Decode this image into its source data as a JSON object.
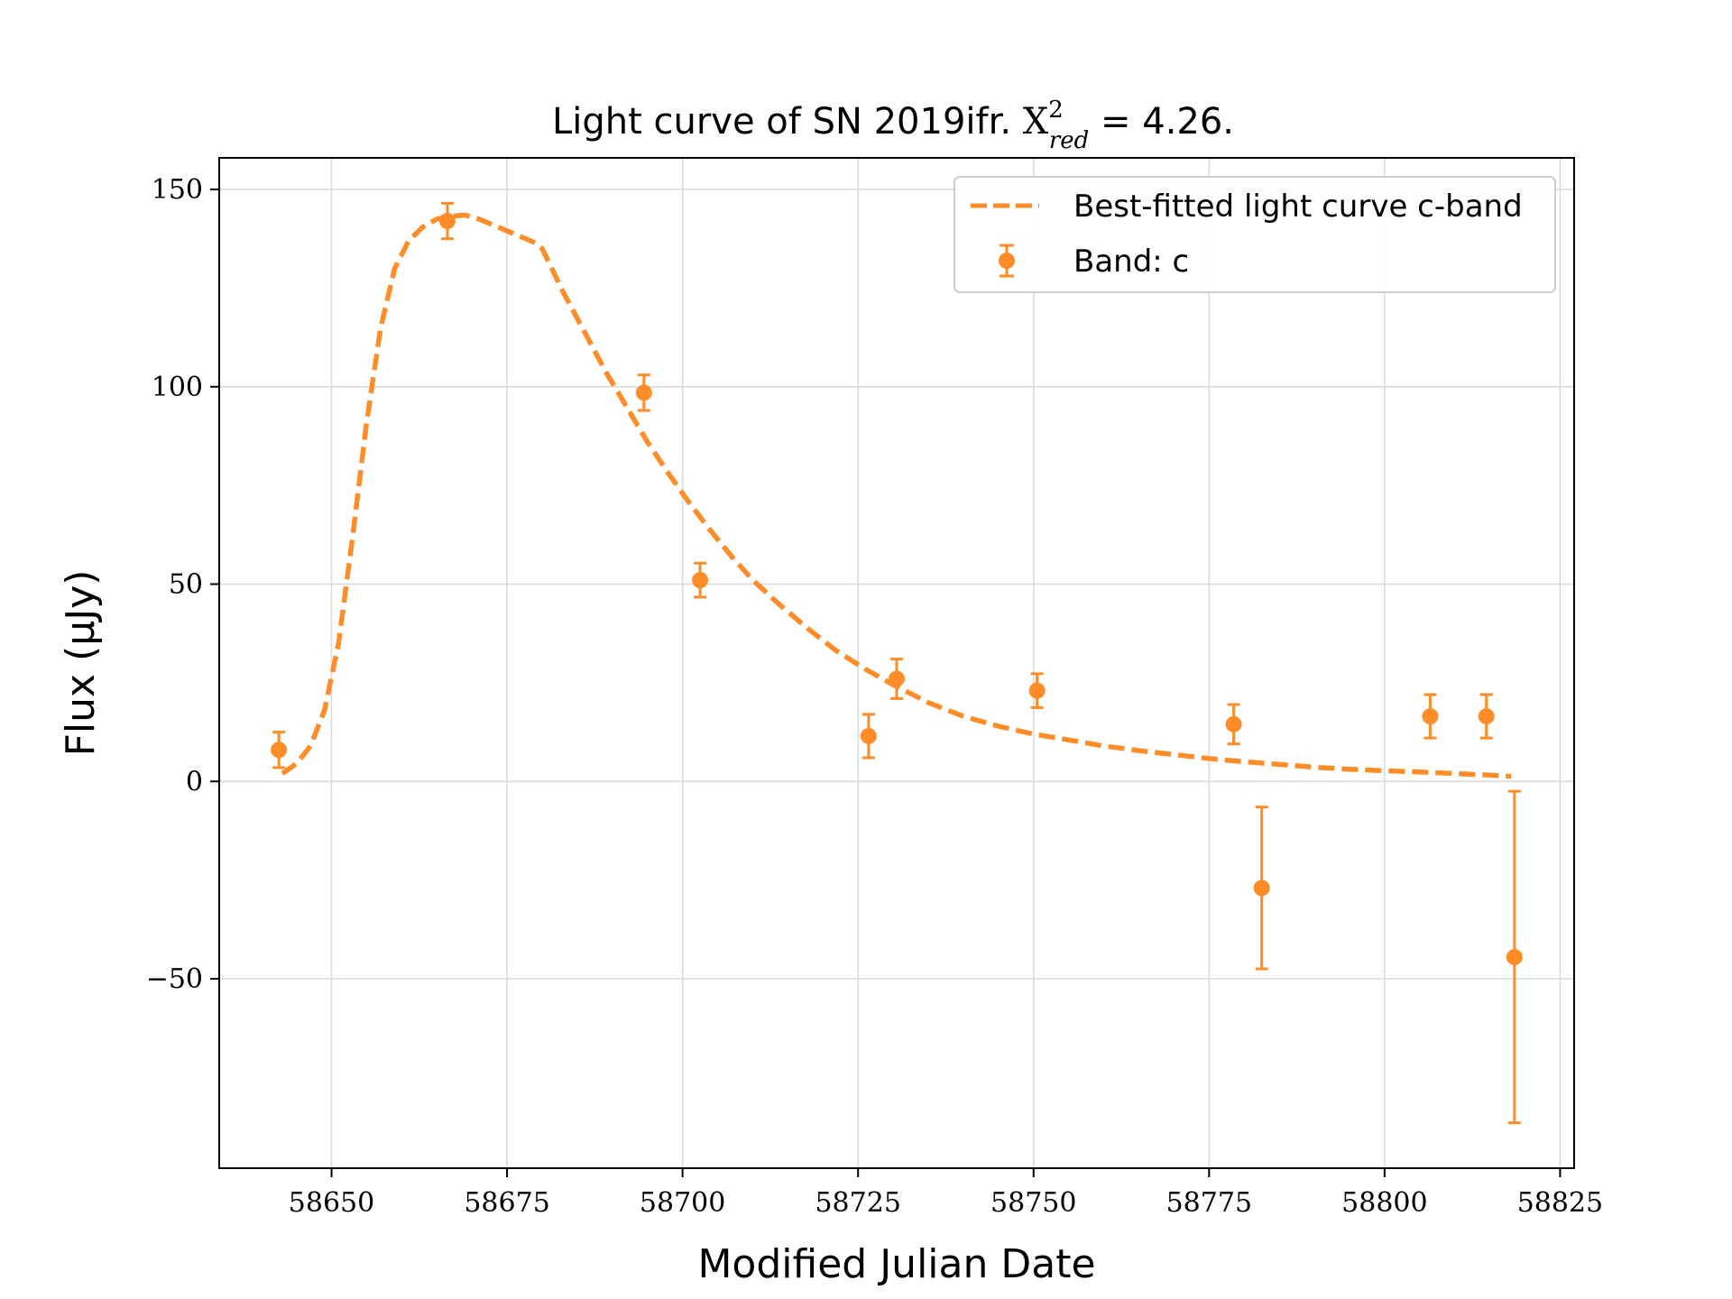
{
  "chart_data": {
    "type": "scatter",
    "title": {
      "prefix": "Light curve of SN 2019ifr. ",
      "chi_symbol": "X",
      "chi_sup": "2",
      "chi_sub": "red",
      "suffix": " = 4.26."
    },
    "xlabel": "Modified Julian Date",
    "ylabel": "Flux (μJy)",
    "xlim": [
      58634,
      58827
    ],
    "ylim": [
      -98,
      158
    ],
    "xticks": [
      58650,
      58675,
      58700,
      58725,
      58750,
      58775,
      58800,
      58825
    ],
    "yticks": [
      -50,
      0,
      50,
      100,
      150
    ],
    "grid": true,
    "legend_position": "top-right",
    "color": "#ff8c26",
    "series": [
      {
        "name": "Best-fitted light curve c-band",
        "kind": "line",
        "style": "dashed",
        "x": [
          58643,
          58645,
          58647,
          58649,
          58651,
          58653,
          58655,
          58657,
          58659,
          58661,
          58663,
          58665,
          58667,
          58669,
          58671,
          58673,
          58675,
          58677,
          58679,
          58680,
          58683,
          58686,
          58689,
          58692,
          58695,
          58698,
          58701,
          58704,
          58707,
          58710,
          58714,
          58718,
          58722,
          58726,
          58730,
          58735,
          58740,
          58745,
          58750,
          58755,
          58760,
          58765,
          58770,
          58775,
          58780,
          58785,
          58790,
          58795,
          58800,
          58805,
          58810,
          58815,
          58818
        ],
        "y": [
          2,
          4.5,
          9,
          18,
          35,
          62,
          91,
          115,
          130,
          137,
          140.5,
          142.5,
          143.2,
          143.5,
          142.5,
          141,
          139.5,
          138,
          136.5,
          135,
          124,
          114,
          104,
          95,
          86,
          78,
          70.5,
          63.5,
          57,
          51,
          44.5,
          38.5,
          33,
          28.5,
          24.5,
          20,
          16.5,
          14,
          12,
          10.5,
          9,
          7.8,
          6.8,
          5.8,
          5,
          4.3,
          3.6,
          3.1,
          2.7,
          2.4,
          2,
          1.6,
          1.3
        ]
      },
      {
        "name": "Band: c",
        "kind": "errorbar",
        "points": [
          {
            "x": 58642.5,
            "y": 8,
            "err": 4.5
          },
          {
            "x": 58666.5,
            "y": 142,
            "err": 4.5
          },
          {
            "x": 58694.5,
            "y": 98.5,
            "err": 4.5
          },
          {
            "x": 58702.5,
            "y": 51,
            "err": 4.3
          },
          {
            "x": 58726.5,
            "y": 11.5,
            "err": 5.5
          },
          {
            "x": 58730.5,
            "y": 26,
            "err": 5
          },
          {
            "x": 58750.5,
            "y": 23,
            "err": 4.3
          },
          {
            "x": 58778.5,
            "y": 14.5,
            "err": 5
          },
          {
            "x": 58782.5,
            "y": -27,
            "err": 20.5
          },
          {
            "x": 58806.5,
            "y": 16.5,
            "err": 5.5
          },
          {
            "x": 58814.5,
            "y": 16.5,
            "err": 5.5
          },
          {
            "x": 58818.5,
            "y": -44.5,
            "err": 42
          }
        ]
      }
    ]
  }
}
